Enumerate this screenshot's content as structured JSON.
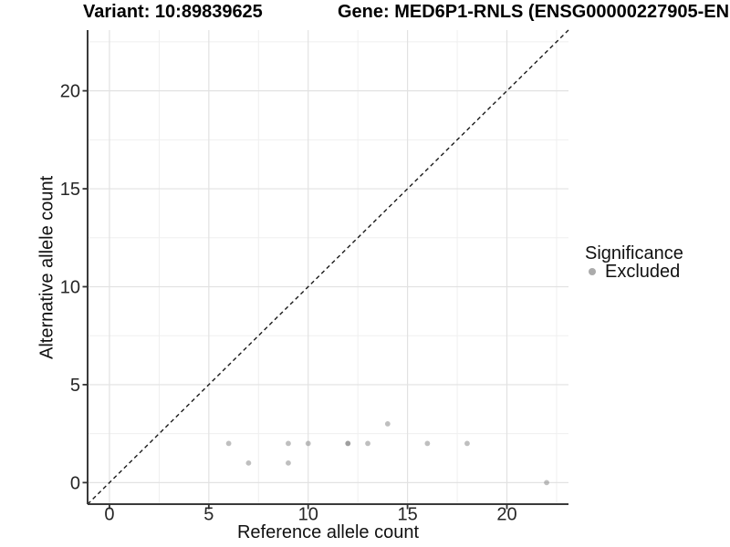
{
  "header": {
    "title_variant": "Variant: 10:89839625",
    "title_gene": "Gene: MED6P1-RNLS (ENSG00000227905-EN"
  },
  "chart_data": {
    "type": "scatter",
    "xlabel": "Reference allele count",
    "ylabel": "Alternative allele count",
    "xlim": [
      -1.1,
      23.1
    ],
    "ylim": [
      -1.1,
      23.1
    ],
    "xticks": [
      0,
      5,
      10,
      15,
      20
    ],
    "yticks": [
      0,
      5,
      10,
      15,
      20
    ],
    "minor_xticks": [
      2.5,
      7.5,
      12.5,
      17.5,
      22.5
    ],
    "minor_yticks": [
      2.5,
      7.5,
      12.5,
      17.5,
      22.5
    ],
    "grid": "major+minor",
    "reference_line": {
      "type": "identity y=x",
      "style": "dashed"
    },
    "series": [
      {
        "name": "Excluded",
        "color": "#808080",
        "opacity": 0.5,
        "points": [
          [
            6,
            2
          ],
          [
            7,
            1
          ],
          [
            9,
            1
          ],
          [
            9,
            2
          ],
          [
            10,
            2
          ],
          [
            12,
            2
          ],
          [
            12,
            2
          ],
          [
            13,
            2
          ],
          [
            14,
            3
          ],
          [
            16,
            2
          ],
          [
            18,
            2
          ],
          [
            22,
            0
          ]
        ]
      }
    ],
    "legend": {
      "title": "Significance",
      "position": "right",
      "entries": [
        {
          "label": "Excluded",
          "color": "#ababab"
        }
      ]
    },
    "colors": {
      "point": "#808080",
      "grid_major": "#e2e2e2",
      "grid_minor": "#efefef",
      "axis_line": "#3a3a3a",
      "tick_mark": "#333333",
      "tick_label": "#262626",
      "reference_line": "#1a1a1a"
    }
  }
}
